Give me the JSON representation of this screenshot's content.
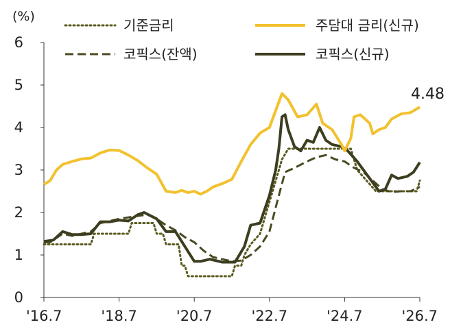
{
  "chart_data": {
    "type": "line",
    "unit_label": "(%)",
    "title": "",
    "xlabel": "",
    "ylabel": "",
    "ylim": [
      0,
      6
    ],
    "yticks": [
      "0",
      "1",
      "2",
      "3",
      "4",
      "5",
      "6"
    ],
    "xticks": [
      "'16.7",
      "'18.7",
      "'20.7",
      "'22.7",
      "'24.7",
      "'26.7"
    ],
    "xrange": [
      "2016-07",
      "2026-07"
    ],
    "grid": false,
    "legend": "top",
    "end_label": "4.48",
    "series": [
      {
        "name": "기준금리",
        "style": "dotted",
        "color": "#5a5a1e",
        "points": [
          [
            "2016-07",
            1.25
          ],
          [
            "2017-10",
            1.25
          ],
          [
            "2017-11",
            1.5
          ],
          [
            "2018-10",
            1.5
          ],
          [
            "2018-11",
            1.75
          ],
          [
            "2019-06",
            1.75
          ],
          [
            "2019-07",
            1.5
          ],
          [
            "2019-09",
            1.5
          ],
          [
            "2019-10",
            1.25
          ],
          [
            "2020-02",
            1.25
          ],
          [
            "2020-03",
            0.75
          ],
          [
            "2020-04",
            0.75
          ],
          [
            "2020-05",
            0.5
          ],
          [
            "2021-07",
            0.5
          ],
          [
            "2021-08",
            0.75
          ],
          [
            "2021-10",
            0.75
          ],
          [
            "2021-11",
            1.0
          ],
          [
            "2022-01",
            1.25
          ],
          [
            "2022-04",
            1.5
          ],
          [
            "2022-05",
            1.75
          ],
          [
            "2022-07",
            2.25
          ],
          [
            "2022-08",
            2.5
          ],
          [
            "2022-10",
            3.0
          ],
          [
            "2022-11",
            3.25
          ],
          [
            "2023-01",
            3.5
          ],
          [
            "2024-09",
            3.5
          ],
          [
            "2024-10",
            3.25
          ],
          [
            "2024-11",
            3.0
          ],
          [
            "2025-02",
            2.75
          ],
          [
            "2025-05",
            2.5
          ],
          [
            "2026-06",
            2.5
          ],
          [
            "2026-07",
            2.75
          ]
        ]
      },
      {
        "name": "주담대 금리(신규)",
        "style": "solid",
        "color": "#f2c12e",
        "points": [
          [
            "2016-07",
            2.66
          ],
          [
            "2016-09",
            2.75
          ],
          [
            "2016-11",
            3.0
          ],
          [
            "2017-01",
            3.13
          ],
          [
            "2017-04",
            3.2
          ],
          [
            "2017-07",
            3.26
          ],
          [
            "2017-10",
            3.28
          ],
          [
            "2018-01",
            3.4
          ],
          [
            "2018-04",
            3.47
          ],
          [
            "2018-07",
            3.46
          ],
          [
            "2018-10",
            3.35
          ],
          [
            "2019-01",
            3.22
          ],
          [
            "2019-04",
            3.05
          ],
          [
            "2019-07",
            2.9
          ],
          [
            "2019-10",
            2.5
          ],
          [
            "2020-01",
            2.47
          ],
          [
            "2020-03",
            2.52
          ],
          [
            "2020-05",
            2.47
          ],
          [
            "2020-07",
            2.5
          ],
          [
            "2020-09",
            2.43
          ],
          [
            "2020-11",
            2.5
          ],
          [
            "2021-01",
            2.6
          ],
          [
            "2021-04",
            2.68
          ],
          [
            "2021-07",
            2.78
          ],
          [
            "2021-10",
            3.2
          ],
          [
            "2022-01",
            3.6
          ],
          [
            "2022-04",
            3.87
          ],
          [
            "2022-07",
            4.0
          ],
          [
            "2022-10",
            4.6
          ],
          [
            "2022-11",
            4.8
          ],
          [
            "2023-01",
            4.65
          ],
          [
            "2023-04",
            4.25
          ],
          [
            "2023-07",
            4.3
          ],
          [
            "2023-10",
            4.55
          ],
          [
            "2023-12",
            4.1
          ],
          [
            "2024-03",
            3.95
          ],
          [
            "2024-06",
            3.6
          ],
          [
            "2024-07",
            3.45
          ],
          [
            "2024-09",
            3.75
          ],
          [
            "2024-10",
            4.25
          ],
          [
            "2024-12",
            4.3
          ],
          [
            "2025-03",
            4.1
          ],
          [
            "2025-04",
            3.85
          ],
          [
            "2025-06",
            3.95
          ],
          [
            "2025-08",
            4.0
          ],
          [
            "2025-10",
            4.2
          ],
          [
            "2026-01",
            4.32
          ],
          [
            "2026-04",
            4.35
          ],
          [
            "2026-07",
            4.48
          ]
        ]
      },
      {
        "name": "코픽스(잔액)",
        "style": "dashed",
        "color": "#4a4a22",
        "points": [
          [
            "2016-07",
            1.3
          ],
          [
            "2016-09",
            1.3
          ],
          [
            "2017-01",
            1.5
          ],
          [
            "2017-04",
            1.45
          ],
          [
            "2017-07",
            1.5
          ],
          [
            "2017-10",
            1.55
          ],
          [
            "2018-01",
            1.75
          ],
          [
            "2018-07",
            1.85
          ],
          [
            "2019-01",
            1.92
          ],
          [
            "2019-04",
            1.95
          ],
          [
            "2019-07",
            1.85
          ],
          [
            "2019-10",
            1.7
          ],
          [
            "2020-01",
            1.58
          ],
          [
            "2020-04",
            1.42
          ],
          [
            "2020-07",
            1.3
          ],
          [
            "2020-10",
            1.1
          ],
          [
            "2021-01",
            0.95
          ],
          [
            "2021-07",
            0.85
          ],
          [
            "2021-10",
            0.87
          ],
          [
            "2022-01",
            1.0
          ],
          [
            "2022-04",
            1.2
          ],
          [
            "2022-07",
            1.55
          ],
          [
            "2022-10",
            2.4
          ],
          [
            "2022-12",
            2.95
          ],
          [
            "2023-03",
            3.05
          ],
          [
            "2023-07",
            3.2
          ],
          [
            "2023-10",
            3.3
          ],
          [
            "2024-01",
            3.35
          ],
          [
            "2024-04",
            3.25
          ],
          [
            "2024-07",
            3.2
          ],
          [
            "2024-10",
            3.05
          ],
          [
            "2025-01",
            2.95
          ],
          [
            "2025-04",
            2.75
          ],
          [
            "2025-07",
            2.55
          ],
          [
            "2025-10",
            2.48
          ],
          [
            "2026-01",
            2.5
          ],
          [
            "2026-04",
            2.5
          ],
          [
            "2026-07",
            2.6
          ]
        ]
      },
      {
        "name": "코픽스(신규)",
        "style": "solid",
        "color": "#3d3d20",
        "points": [
          [
            "2016-07",
            1.32
          ],
          [
            "2016-10",
            1.35
          ],
          [
            "2017-01",
            1.55
          ],
          [
            "2017-04",
            1.48
          ],
          [
            "2017-07",
            1.48
          ],
          [
            "2017-10",
            1.5
          ],
          [
            "2018-01",
            1.78
          ],
          [
            "2018-04",
            1.78
          ],
          [
            "2018-07",
            1.82
          ],
          [
            "2018-10",
            1.8
          ],
          [
            "2019-01",
            1.95
          ],
          [
            "2019-03",
            2.0
          ],
          [
            "2019-07",
            1.85
          ],
          [
            "2019-10",
            1.55
          ],
          [
            "2020-01",
            1.55
          ],
          [
            "2020-04",
            1.2
          ],
          [
            "2020-07",
            0.85
          ],
          [
            "2020-09",
            0.85
          ],
          [
            "2020-12",
            0.9
          ],
          [
            "2021-04",
            0.83
          ],
          [
            "2021-08",
            0.83
          ],
          [
            "2021-11",
            1.2
          ],
          [
            "2022-01",
            1.7
          ],
          [
            "2022-04",
            1.75
          ],
          [
            "2022-07",
            2.4
          ],
          [
            "2022-09",
            3.0
          ],
          [
            "2022-10",
            3.5
          ],
          [
            "2022-11",
            4.25
          ],
          [
            "2022-12",
            4.3
          ],
          [
            "2023-01",
            3.95
          ],
          [
            "2023-03",
            3.55
          ],
          [
            "2023-05",
            3.45
          ],
          [
            "2023-07",
            3.7
          ],
          [
            "2023-09",
            3.65
          ],
          [
            "2023-11",
            4.0
          ],
          [
            "2024-01",
            3.7
          ],
          [
            "2024-03",
            3.6
          ],
          [
            "2024-06",
            3.55
          ],
          [
            "2024-08",
            3.45
          ],
          [
            "2024-11",
            3.2
          ],
          [
            "2025-02",
            2.9
          ],
          [
            "2025-04",
            2.7
          ],
          [
            "2025-06",
            2.5
          ],
          [
            "2025-08",
            2.55
          ],
          [
            "2025-10",
            2.88
          ],
          [
            "2025-12",
            2.8
          ],
          [
            "2026-03",
            2.85
          ],
          [
            "2026-05",
            2.95
          ],
          [
            "2026-07",
            3.18
          ]
        ]
      }
    ]
  }
}
